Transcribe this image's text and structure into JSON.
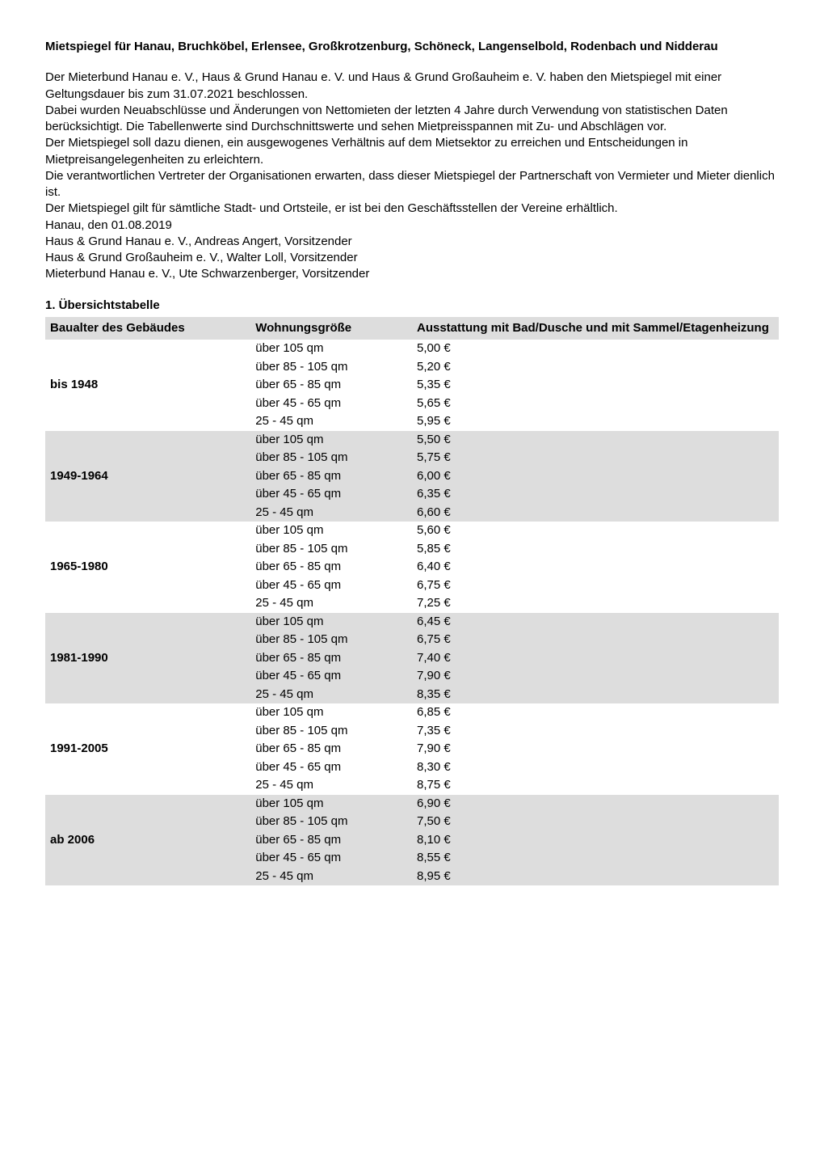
{
  "title": "Mietspiegel für Hanau, Bruchköbel, Erlensee, Großkrotzenburg, Schöneck, Langenselbold, Rodenbach und Nidderau",
  "intro_lines": [
    "Der Mieterbund Hanau e. V., Haus & Grund Hanau e. V. und Haus & Grund Großauheim e. V. haben den Mietspiegel mit einer Geltungsdauer bis zum 31.07.2021 beschlossen.",
    "Dabei wurden Neuabschlüsse und Änderungen von Nettomieten der letzten 4 Jahre durch Verwendung von statistischen Daten berücksichtigt. Die Tabellenwerte sind Durchschnittswerte und sehen Mietpreisspannen mit Zu- und Abschlägen vor.",
    "Der Mietspiegel soll dazu dienen, ein ausgewogenes Verhältnis auf dem Mietsektor zu erreichen und Entscheidungen in Mietpreisangelegenheiten zu erleichtern.",
    "Die verantwortlichen Vertreter der Organisationen erwarten, dass dieser Mietspiegel der Partnerschaft von Vermieter und Mieter dienlich ist.",
    "Der Mietspiegel gilt für sämtliche Stadt- und Ortsteile, er ist bei den Geschäftsstellen der Vereine erhältlich.",
    "Hanau, den 01.08.2019",
    "Haus & Grund Hanau e. V., Andreas Angert, Vorsitzender",
    "Haus & Grund Großauheim e. V., Walter Loll, Vorsitzender",
    "Mieterbund Hanau e. V., Ute Schwarzenberger, Vorsitzender"
  ],
  "section_heading": "1. Übersichtstabelle",
  "table": {
    "columns": [
      "Baualter des Gebäudes",
      "Wohnungsgröße",
      "Ausstattung mit Bad/Dusche und mit Sammel/Etagenheizung"
    ],
    "header_bg": "#dddddd",
    "row_bg_odd": "#ffffff",
    "row_bg_even": "#dddddd",
    "size_labels": [
      "über 105 qm",
      "über 85 - 105 qm",
      "über 65 - 85 qm",
      "über 45 - 65 qm",
      "25 - 45 qm"
    ],
    "periods": [
      {
        "label": "bis 1948",
        "prices": [
          "5,00 €",
          "5,20 €",
          "5,35 €",
          "5,65 €",
          "5,95 €"
        ]
      },
      {
        "label": "1949-1964",
        "prices": [
          "5,50 €",
          "5,75 €",
          "6,00 €",
          "6,35 €",
          "6,60 €"
        ]
      },
      {
        "label": "1965-1980",
        "prices": [
          "5,60 €",
          "5,85 €",
          "6,40 €",
          "6,75 €",
          "7,25 €"
        ]
      },
      {
        "label": "1981-1990",
        "prices": [
          "6,45 €",
          "6,75 €",
          "7,40 €",
          "7,90 €",
          "8,35 €"
        ]
      },
      {
        "label": "1991-2005",
        "prices": [
          "6,85 €",
          "7,35 €",
          "7,90 €",
          "8,30 €",
          "8,75 €"
        ]
      },
      {
        "label": "ab 2006",
        "prices": [
          "6,90 €",
          "7,50 €",
          "8,10 €",
          "8,55 €",
          "8,95 €"
        ]
      }
    ]
  }
}
